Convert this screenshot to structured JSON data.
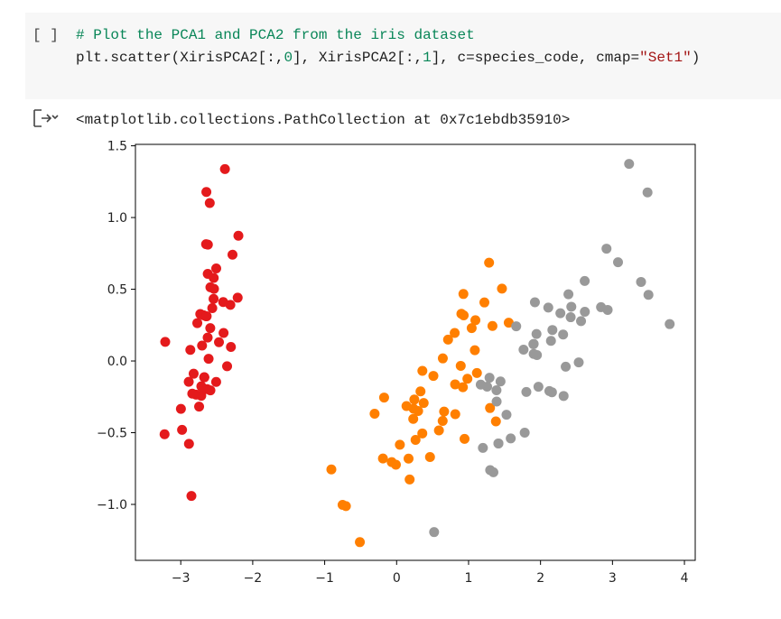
{
  "cell": {
    "run_marker": "[ ]",
    "code_lines": [
      [
        {
          "text": "# Plot the PCA1 and PCA2 from the iris dataset",
          "color": "#098658"
        }
      ],
      [
        {
          "text": "plt.scatter(XirisPCA2[:,",
          "color": "#1f1f1f"
        },
        {
          "text": "0",
          "color": "#098658"
        },
        {
          "text": "], XirisPCA2[:,",
          "color": "#1f1f1f"
        },
        {
          "text": "1",
          "color": "#098658"
        },
        {
          "text": "], c=species_code, cmap=",
          "color": "#1f1f1f"
        },
        {
          "text": "\"Set1\"",
          "color": "#a31515"
        },
        {
          "text": ")",
          "color": "#1f1f1f"
        }
      ]
    ],
    "output_text": "<matplotlib.collections.PathCollection at 0x7c1ebdb35910>"
  },
  "chart_data": {
    "type": "scatter",
    "xlim": [
      -3.63,
      4.15
    ],
    "ylim": [
      -1.39,
      1.51
    ],
    "xticks": [
      {
        "value": -3,
        "label": "−3"
      },
      {
        "value": -2,
        "label": "−2"
      },
      {
        "value": -1,
        "label": "−1"
      },
      0,
      1,
      2,
      3,
      4
    ],
    "yticks": [
      {
        "value": -1,
        "label": "−1.0"
      },
      {
        "value": -0.5,
        "label": "−0.5"
      },
      {
        "value": 0,
        "label": "0.0"
      },
      {
        "value": 0.5,
        "label": "0.5"
      },
      {
        "value": 1,
        "label": "1.0"
      },
      {
        "value": 1.5,
        "label": "1.5"
      }
    ],
    "grid": false,
    "series": [
      {
        "color": "#e41a1c",
        "x": [
          -2.684,
          -2.714,
          -2.889,
          -2.745,
          -2.729,
          -2.281,
          -2.821,
          -2.626,
          -2.886,
          -2.673,
          -2.507,
          -2.613,
          -2.787,
          -3.225,
          -2.644,
          -2.386,
          -2.623,
          -2.648,
          -2.199,
          -2.588,
          -2.311,
          -2.544,
          -3.216,
          -2.303,
          -2.356,
          -2.508,
          -2.469,
          -2.562,
          -2.64,
          -2.633,
          -2.588,
          -2.41,
          -2.648,
          -2.597,
          -2.673,
          -2.867,
          -2.625,
          -2.673,
          -2.982,
          -2.59,
          -2.77,
          -2.852,
          -2.998,
          -2.405,
          -2.209,
          -2.715,
          -2.538,
          -2.84,
          -2.542,
          -2.704
        ],
        "values": [
          0.319,
          -0.177,
          -0.145,
          -0.318,
          0.327,
          0.741,
          -0.089,
          0.163,
          -0.578,
          -0.114,
          0.645,
          0.015,
          -0.235,
          -0.511,
          1.178,
          1.338,
          0.811,
          0.312,
          0.873,
          0.514,
          0.391,
          0.433,
          0.133,
          0.098,
          -0.037,
          -0.146,
          0.131,
          0.368,
          0.312,
          -0.196,
          -0.205,
          0.411,
          0.814,
          1.101,
          -0.114,
          0.077,
          0.607,
          -0.114,
          -0.48,
          0.229,
          0.264,
          -0.941,
          -0.334,
          0.195,
          0.441,
          -0.243,
          0.503,
          -0.228,
          0.579,
          0.107
        ]
      },
      {
        "color": "#ff7f00",
        "x": [
          1.285,
          0.932,
          1.464,
          0.181,
          1.087,
          0.64,
          1.095,
          -0.751,
          1.043,
          -0.01,
          -0.511,
          0.511,
          0.263,
          0.984,
          -0.174,
          0.928,
          0.66,
          0.236,
          0.944,
          0.045,
          1.116,
          0.358,
          1.298,
          0.921,
          0.715,
          0.9,
          1.332,
          1.558,
          0.813,
          -0.306,
          -0.068,
          -0.19,
          0.137,
          1.38,
          0.588,
          0.807,
          1.22,
          0.815,
          0.246,
          0.166,
          0.464,
          0.891,
          0.231,
          -0.705,
          0.357,
          0.332,
          0.376,
          0.642,
          -0.907,
          0.299
        ],
        "values": [
          0.685,
          0.318,
          0.504,
          -0.826,
          0.075,
          -0.418,
          0.284,
          -1.003,
          0.229,
          -0.723,
          -1.263,
          -0.104,
          -0.55,
          -0.124,
          -0.255,
          0.467,
          -0.353,
          -0.333,
          -0.543,
          -0.584,
          -0.084,
          -0.069,
          -0.328,
          -0.183,
          0.149,
          0.329,
          0.244,
          0.267,
          -0.163,
          -0.368,
          -0.705,
          -0.68,
          -0.314,
          -0.421,
          -0.484,
          0.195,
          0.408,
          -0.371,
          -0.269,
          -0.681,
          -0.67,
          -0.034,
          -0.404,
          -1.012,
          -0.505,
          -0.212,
          -0.293,
          0.018,
          -0.756,
          -0.349
        ]
      },
      {
        "color": "#999999",
        "x": [
          2.531,
          1.415,
          2.616,
          1.971,
          2.35,
          3.397,
          0.521,
          2.933,
          2.321,
          2.917,
          1.662,
          1.803,
          2.165,
          1.345,
          1.586,
          1.905,
          1.95,
          3.487,
          3.795,
          1.3,
          2.428,
          1.199,
          3.5,
          1.388,
          2.276,
          2.614,
          1.258,
          1.291,
          2.123,
          2.388,
          2.841,
          3.231,
          2.159,
          1.444,
          1.78,
          3.077,
          2.145,
          1.905,
          1.169,
          2.108,
          2.314,
          1.922,
          1.415,
          2.563,
          2.419,
          1.944,
          1.527,
          1.764,
          1.901,
          1.39
        ],
        "values": [
          -0.01,
          -0.575,
          0.343,
          -0.18,
          -0.04,
          0.551,
          -1.193,
          0.356,
          -0.244,
          0.783,
          0.242,
          -0.216,
          0.216,
          -0.776,
          -0.54,
          0.119,
          0.041,
          1.175,
          0.257,
          -0.761,
          0.378,
          -0.606,
          0.461,
          -0.204,
          0.333,
          0.558,
          -0.179,
          -0.117,
          -0.21,
          0.465,
          0.375,
          1.374,
          -0.218,
          -0.143,
          -0.5,
          0.688,
          0.14,
          0.049,
          -0.165,
          0.372,
          0.184,
          0.409,
          -0.575,
          0.278,
          0.305,
          0.188,
          -0.375,
          0.079,
          0.117,
          -0.283
        ]
      }
    ]
  }
}
